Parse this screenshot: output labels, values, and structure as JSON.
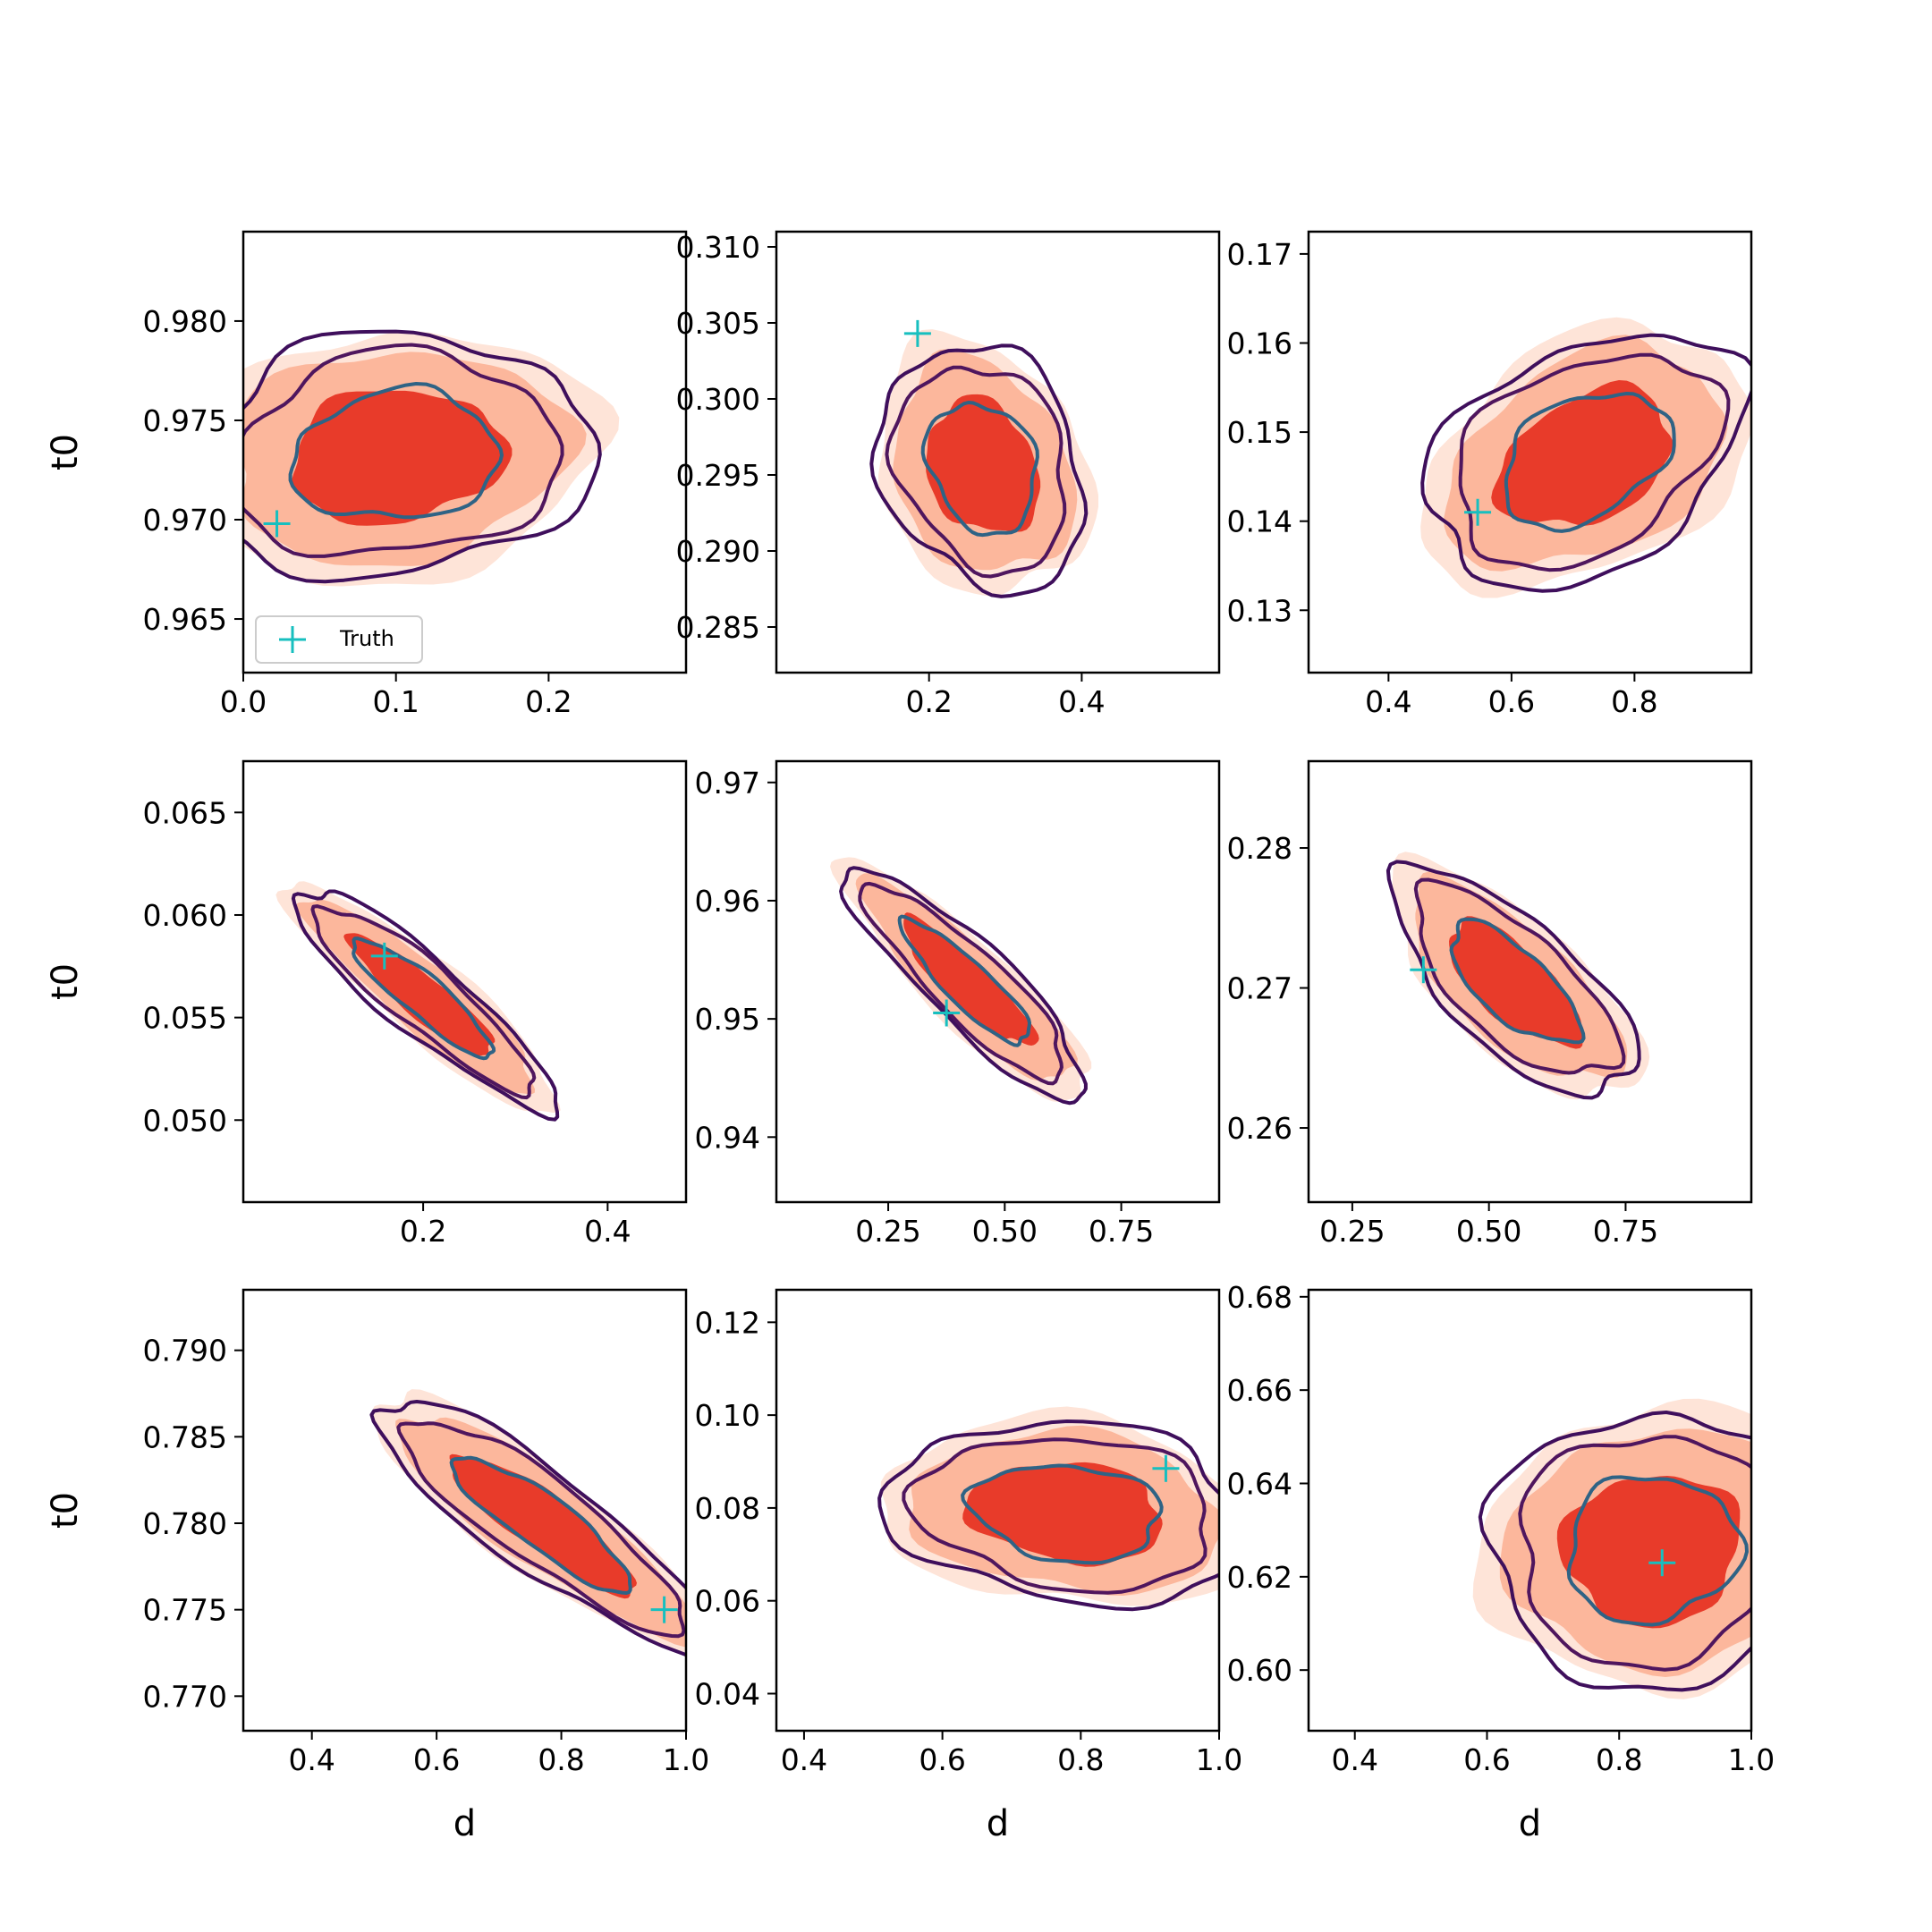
{
  "figure": {
    "truth_color": "#17bfbf",
    "fill_colors": [
      "#fee4d8",
      "#fcb79c",
      "#e83b2a"
    ],
    "contour_colors": [
      "#3f0f5c",
      "#4f165e",
      "#2f6385"
    ],
    "legend_label": "Truth"
  },
  "chart_data": [
    {
      "type": "scatter",
      "row": 0,
      "col": 0,
      "xlabel": "",
      "ylabel": "t0",
      "xlim": [
        0.0,
        0.29
      ],
      "ylim": [
        0.9623,
        0.9845
      ],
      "xticks": [
        "0.0",
        "0.1",
        "0.2"
      ],
      "xtick_values": [
        0.0,
        0.1,
        0.2
      ],
      "yticks": [
        "0.965",
        "0.970",
        "0.975",
        "0.980"
      ],
      "ytick_values": [
        0.965,
        0.97,
        0.975,
        0.98
      ],
      "truth": {
        "x": 0.022,
        "y": 0.9698
      },
      "center": {
        "x": 0.1,
        "y": 0.9732
      },
      "spread": {
        "x": 0.052,
        "y": 0.0025
      },
      "rho": 0.1,
      "show_legend": true
    },
    {
      "type": "scatter",
      "row": 0,
      "col": 1,
      "xlabel": "",
      "ylabel": "",
      "xlim": [
        0.0,
        0.58
      ],
      "ylim": [
        0.282,
        0.311
      ],
      "xticks": [
        "0.2",
        "0.4"
      ],
      "xtick_values": [
        0.2,
        0.4
      ],
      "yticks": [
        "0.285",
        "0.290",
        "0.295",
        "0.300",
        "0.305",
        "0.310"
      ],
      "ytick_values": [
        0.285,
        0.29,
        0.295,
        0.3,
        0.305,
        0.31
      ],
      "truth": {
        "x": 0.185,
        "y": 0.3043
      },
      "center": {
        "x": 0.27,
        "y": 0.2955
      },
      "spread": {
        "x": 0.055,
        "y": 0.0033
      },
      "rho": -0.2
    },
    {
      "type": "scatter",
      "row": 0,
      "col": 2,
      "xlabel": "",
      "ylabel": "",
      "xlim": [
        0.27,
        0.99
      ],
      "ylim": [
        0.123,
        0.1725
      ],
      "xticks": [
        "0.4",
        "0.6",
        "0.8"
      ],
      "xtick_values": [
        0.4,
        0.6,
        0.8
      ],
      "yticks": [
        "0.13",
        "0.14",
        "0.15",
        "0.16",
        "0.17"
      ],
      "ytick_values": [
        0.13,
        0.14,
        0.15,
        0.16,
        0.17
      ],
      "truth": {
        "x": 0.545,
        "y": 0.141
      },
      "center": {
        "x": 0.72,
        "y": 0.147
      },
      "spread": {
        "x": 0.105,
        "y": 0.0058
      },
      "rho": 0.35
    },
    {
      "type": "scatter",
      "row": 1,
      "col": 0,
      "xlabel": "",
      "ylabel": "t0",
      "xlim": [
        0.005,
        0.485
      ],
      "ylim": [
        0.046,
        0.0675
      ],
      "xticks": [
        "0.2",
        "0.4"
      ],
      "xtick_values": [
        0.2,
        0.4
      ],
      "yticks": [
        "0.050",
        "0.055",
        "0.060",
        "0.065"
      ],
      "ytick_values": [
        0.05,
        0.055,
        0.06,
        0.065
      ],
      "truth": {
        "x": 0.158,
        "y": 0.058
      },
      "center": {
        "x": 0.2,
        "y": 0.056
      },
      "spread": {
        "x": 0.058,
        "y": 0.0022
      },
      "rho": -0.9
    },
    {
      "type": "scatter",
      "row": 1,
      "col": 1,
      "xlabel": "",
      "ylabel": "",
      "xlim": [
        0.01,
        0.96
      ],
      "ylim": [
        0.9345,
        0.9718
      ],
      "xticks": [
        "0.25",
        "0.50",
        "0.75"
      ],
      "xtick_values": [
        0.25,
        0.5,
        0.75
      ],
      "yticks": [
        "0.94",
        "0.95",
        "0.96",
        "0.97"
      ],
      "ytick_values": [
        0.94,
        0.95,
        0.96,
        0.97
      ],
      "truth": {
        "x": 0.375,
        "y": 0.9505
      },
      "center": {
        "x": 0.42,
        "y": 0.953
      },
      "spread": {
        "x": 0.105,
        "y": 0.004
      },
      "rho": -0.88
    },
    {
      "type": "scatter",
      "row": 1,
      "col": 2,
      "xlabel": "",
      "ylabel": "",
      "xlim": [
        0.17,
        0.98
      ],
      "ylim": [
        0.2547,
        0.2862
      ],
      "xticks": [
        "0.25",
        "0.50",
        "0.75"
      ],
      "xtick_values": [
        0.25,
        0.5,
        0.75
      ],
      "yticks": [
        "0.26",
        "0.27",
        "0.28"
      ],
      "ytick_values": [
        0.26,
        0.27,
        0.28
      ],
      "truth": {
        "x": 0.38,
        "y": 0.2713
      },
      "center": {
        "x": 0.545,
        "y": 0.2703
      },
      "spread": {
        "x": 0.09,
        "y": 0.0033
      },
      "rho": -0.7
    },
    {
      "type": "scatter",
      "row": 2,
      "col": 0,
      "xlabel": "d",
      "ylabel": "t0",
      "xlim": [
        0.29,
        1.0
      ],
      "ylim": [
        0.768,
        0.7935
      ],
      "xticks": [
        "0.4",
        "0.6",
        "0.8",
        "1.0"
      ],
      "xtick_values": [
        0.4,
        0.6,
        0.8,
        1.0
      ],
      "yticks": [
        "0.770",
        "0.775",
        "0.780",
        "0.785",
        "0.790"
      ],
      "ytick_values": [
        0.77,
        0.775,
        0.78,
        0.785,
        0.79
      ],
      "truth": {
        "x": 0.965,
        "y": 0.775
      },
      "center": {
        "x": 0.77,
        "y": 0.78
      },
      "spread": {
        "x": 0.11,
        "y": 0.003
      },
      "rho": -0.88
    },
    {
      "type": "scatter",
      "row": 2,
      "col": 1,
      "xlabel": "d",
      "ylabel": "",
      "xlim": [
        0.36,
        1.0
      ],
      "ylim": [
        0.032,
        0.127
      ],
      "xticks": [
        "0.4",
        "0.6",
        "0.8",
        "1.0"
      ],
      "xtick_values": [
        0.4,
        0.6,
        0.8,
        1.0
      ],
      "yticks": [
        "0.04",
        "0.06",
        "0.08",
        "0.10",
        "0.12"
      ],
      "ytick_values": [
        0.04,
        0.06,
        0.08,
        0.1,
        0.12
      ],
      "truth": {
        "x": 0.923,
        "y": 0.0885
      },
      "center": {
        "x": 0.78,
        "y": 0.079
      },
      "spread": {
        "x": 0.105,
        "y": 0.008
      },
      "rho": -0.15
    },
    {
      "type": "scatter",
      "row": 2,
      "col": 2,
      "xlabel": "d",
      "ylabel": "",
      "xlim": [
        0.33,
        1.0
      ],
      "ylim": [
        0.587,
        0.6815
      ],
      "xticks": [
        "0.4",
        "0.6",
        "0.8",
        "1.0"
      ],
      "xtick_values": [
        0.4,
        0.6,
        0.8,
        1.0
      ],
      "yticks": [
        "0.60",
        "0.62",
        "0.64",
        "0.66",
        "0.68"
      ],
      "ytick_values": [
        0.6,
        0.62,
        0.64,
        0.66,
        0.68
      ],
      "truth": {
        "x": 0.865,
        "y": 0.623
      },
      "center": {
        "x": 0.85,
        "y": 0.626
      },
      "spread": {
        "x": 0.1,
        "y": 0.012
      },
      "rho": 0.05
    }
  ]
}
